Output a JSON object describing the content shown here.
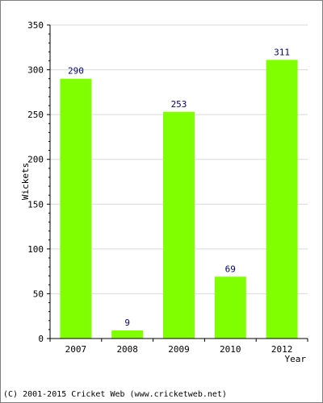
{
  "chart_data": {
    "type": "bar",
    "title": "",
    "xlabel": "Year",
    "ylabel": "Wickets",
    "categories": [
      "2007",
      "2008",
      "2009",
      "2010",
      "2012"
    ],
    "values": [
      290,
      9,
      253,
      69,
      311
    ],
    "data_labels": [
      "290",
      "9",
      "253",
      "69",
      "311"
    ],
    "ylim": [
      0,
      350
    ],
    "yticks": [
      0,
      50,
      100,
      150,
      200,
      250,
      300,
      350
    ],
    "grid": true,
    "legend": "none",
    "colors": {
      "bar": "#7fff00",
      "data_label": "#000080",
      "grid": "#d9d9d9",
      "axis": "#000000"
    }
  },
  "footer": {
    "copyright": "(C) 2001-2015 Cricket Web (www.cricketweb.net)"
  }
}
